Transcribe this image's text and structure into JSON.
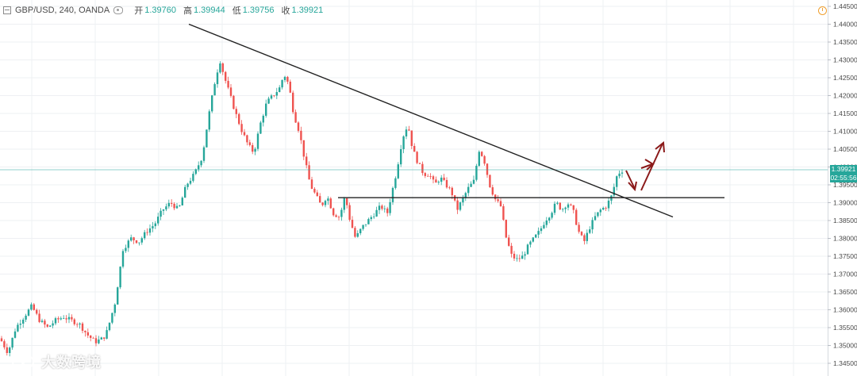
{
  "header": {
    "symbol": "GBP/USD, 240, OANDA",
    "ohlc": [
      {
        "label": "开",
        "value": "1.39760"
      },
      {
        "label": "高",
        "value": "1.39944"
      },
      {
        "label": "低",
        "value": "1.39756"
      },
      {
        "label": "收",
        "value": "1.39921"
      }
    ]
  },
  "price_axis": {
    "ticks": [
      "1.44500",
      "1.44000",
      "1.43500",
      "1.43000",
      "1.42500",
      "1.42000",
      "1.41500",
      "1.41000",
      "1.40500",
      "1.40000",
      "1.39500",
      "1.39000",
      "1.38500",
      "1.38000",
      "1.37500",
      "1.37000",
      "1.36500",
      "1.36000",
      "1.35500",
      "1.35000",
      "1.34500"
    ],
    "current_price": "1.39921",
    "countdown": "02:55:56",
    "current_price_value": 1.39921
  },
  "colors": {
    "up": "#26a69a",
    "down": "#ef5350",
    "trendline": "#222222",
    "arrows": "#8b1a1a",
    "price_line": "#26a69a",
    "grid": "#eef0f3"
  },
  "watermark": {
    "text": "大数跨境"
  },
  "icons": {
    "header_toggle": "collapse-box-icon",
    "visibility": "eye-icon",
    "clock": "clock-icon",
    "logo": "link-logo-icon"
  },
  "chart_data": {
    "type": "candlestick",
    "symbol": "GBP/USD",
    "timeframe": "240",
    "ylim": [
      1.345,
      1.445
    ],
    "grid": true,
    "path": [
      [
        0,
        1.352
      ],
      [
        10,
        1.348
      ],
      [
        20,
        1.355
      ],
      [
        30,
        1.358
      ],
      [
        40,
        1.361
      ],
      [
        50,
        1.357
      ],
      [
        60,
        1.355
      ],
      [
        70,
        1.357
      ],
      [
        80,
        1.358
      ],
      [
        90,
        1.357
      ],
      [
        100,
        1.356
      ],
      [
        110,
        1.353
      ],
      [
        120,
        1.351
      ],
      [
        130,
        1.352
      ],
      [
        135,
        1.354
      ],
      [
        145,
        1.362
      ],
      [
        155,
        1.377
      ],
      [
        165,
        1.38
      ],
      [
        175,
        1.379
      ],
      [
        185,
        1.382
      ],
      [
        195,
        1.384
      ],
      [
        205,
        1.388
      ],
      [
        215,
        1.39
      ],
      [
        225,
        1.388
      ],
      [
        235,
        1.395
      ],
      [
        245,
        1.398
      ],
      [
        255,
        1.403
      ],
      [
        262,
        1.413
      ],
      [
        270,
        1.423
      ],
      [
        277,
        1.43
      ],
      [
        283,
        1.425
      ],
      [
        290,
        1.42
      ],
      [
        297,
        1.415
      ],
      [
        305,
        1.41
      ],
      [
        313,
        1.406
      ],
      [
        320,
        1.404
      ],
      [
        328,
        1.412
      ],
      [
        336,
        1.418
      ],
      [
        344,
        1.42
      ],
      [
        352,
        1.422
      ],
      [
        358,
        1.426
      ],
      [
        364,
        1.423
      ],
      [
        370,
        1.415
      ],
      [
        377,
        1.41
      ],
      [
        384,
        1.402
      ],
      [
        391,
        1.395
      ],
      [
        398,
        1.392
      ],
      [
        405,
        1.389
      ],
      [
        412,
        1.392
      ],
      [
        420,
        1.387
      ],
      [
        428,
        1.386
      ],
      [
        435,
        1.392
      ],
      [
        440,
        1.386
      ],
      [
        448,
        1.38
      ],
      [
        456,
        1.383
      ],
      [
        464,
        1.385
      ],
      [
        472,
        1.387
      ],
      [
        480,
        1.389
      ],
      [
        488,
        1.387
      ],
      [
        494,
        1.393
      ],
      [
        500,
        1.399
      ],
      [
        507,
        1.408
      ],
      [
        514,
        1.412
      ],
      [
        520,
        1.405
      ],
      [
        527,
        1.401
      ],
      [
        534,
        1.398
      ],
      [
        541,
        1.398
      ],
      [
        548,
        1.395
      ],
      [
        555,
        1.397
      ],
      [
        562,
        1.395
      ],
      [
        569,
        1.393
      ],
      [
        576,
        1.388
      ],
      [
        583,
        1.391
      ],
      [
        590,
        1.394
      ],
      [
        597,
        1.396
      ],
      [
        604,
        1.405
      ],
      [
        610,
        1.402
      ],
      [
        617,
        1.395
      ],
      [
        624,
        1.391
      ],
      [
        631,
        1.389
      ],
      [
        638,
        1.38
      ],
      [
        645,
        1.375
      ],
      [
        652,
        1.374
      ],
      [
        659,
        1.375
      ],
      [
        666,
        1.378
      ],
      [
        673,
        1.38
      ],
      [
        680,
        1.382
      ],
      [
        687,
        1.385
      ],
      [
        694,
        1.387
      ],
      [
        701,
        1.39
      ],
      [
        708,
        1.388
      ],
      [
        715,
        1.39
      ],
      [
        722,
        1.388
      ],
      [
        729,
        1.382
      ],
      [
        736,
        1.379
      ],
      [
        743,
        1.383
      ],
      [
        750,
        1.386
      ],
      [
        757,
        1.388
      ],
      [
        764,
        1.389
      ],
      [
        771,
        1.392
      ],
      [
        778,
        1.398
      ],
      [
        784,
        1.399
      ]
    ],
    "levels": {
      "resistance_trendline": [
        [
          238,
          1.44
        ],
        [
          848,
          1.386
        ]
      ],
      "horizontal_support": [
        [
          426,
          1.3914
        ],
        [
          913,
          1.3914
        ]
      ]
    }
  }
}
